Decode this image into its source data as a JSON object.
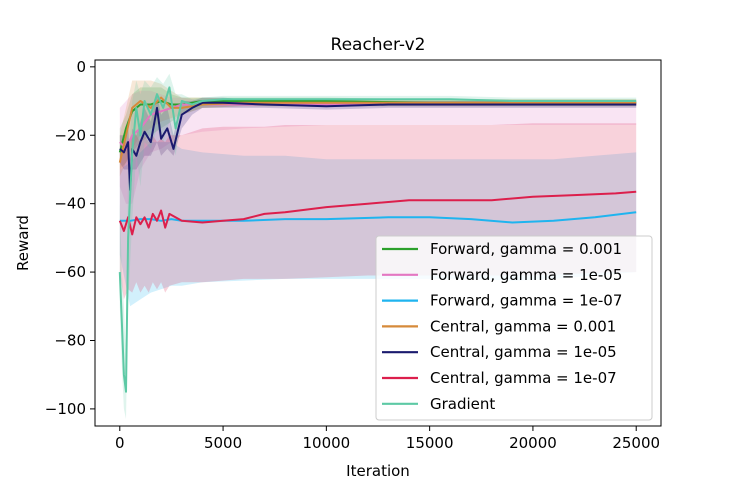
{
  "chart_data": {
    "type": "line",
    "title": "Reacher-v2",
    "xlabel": "Iteration",
    "ylabel": "Reward",
    "xlim": [
      -1200,
      26200
    ],
    "ylim": [
      -105,
      2
    ],
    "xticks": [
      0,
      5000,
      10000,
      15000,
      20000,
      25000
    ],
    "xtick_labels": [
      "0",
      "5000",
      "10000",
      "15000",
      "20000",
      "25000"
    ],
    "yticks": [
      0,
      -20,
      -40,
      -60,
      -80,
      -100
    ],
    "ytick_labels": [
      "0",
      "−20",
      "−40",
      "−60",
      "−80",
      "−100"
    ],
    "legend_position": "lower-right",
    "series": [
      {
        "name": "Forward, gamma = 0.001",
        "color": "#2ca02c",
        "x": [
          0,
          300,
          600,
          1000,
          1500,
          2000,
          2500,
          3000,
          4000,
          6000,
          10000,
          15000,
          20000,
          25000
        ],
        "y": [
          -25,
          -18,
          -13,
          -11,
          -11,
          -10,
          -11,
          -11,
          -10,
          -10,
          -10,
          -10.5,
          -10.5,
          -10.5
        ],
        "band_lower": [
          -30,
          -28,
          -25,
          -22,
          -20,
          -18,
          -16,
          -14,
          -12,
          -11.5,
          -11.5,
          -11.5,
          -11.5,
          -11.5
        ],
        "band_upper": [
          -18,
          -14,
          -8,
          -6,
          -6,
          -6,
          -8,
          -9,
          -9,
          -9,
          -9,
          -9.5,
          -9.5,
          -9.5
        ]
      },
      {
        "name": "Forward, gamma = 1e-05",
        "color": "#e377c2",
        "x": [
          0,
          300,
          600,
          1000,
          1500,
          2000,
          2500,
          3000,
          4000,
          6000,
          10000,
          15000,
          20000,
          25000
        ],
        "y": [
          -22,
          -24,
          -20,
          -18,
          -14,
          -13,
          -12,
          -11,
          -11,
          -11,
          -11,
          -11,
          -11,
          -11
        ],
        "band_lower": [
          -35,
          -40,
          -40,
          -30,
          -25,
          -24,
          -22,
          -20,
          -19,
          -18,
          -17,
          -17,
          -17,
          -17
        ],
        "band_upper": [
          -12,
          -10,
          -8,
          -7,
          -7,
          -8,
          -9,
          -9,
          -10,
          -10,
          -10,
          -10,
          -10,
          -10
        ]
      },
      {
        "name": "Forward, gamma = 1e-07",
        "color": "#1fb4ef",
        "x": [
          0,
          500,
          1000,
          1500,
          2000,
          2500,
          3000,
          4000,
          6000,
          8000,
          10000,
          13000,
          15000,
          17000,
          19000,
          21000,
          23000,
          25000
        ],
        "y": [
          -45,
          -45,
          -44.5,
          -44.5,
          -45,
          -44.5,
          -45,
          -45,
          -45,
          -44.5,
          -44.5,
          -44,
          -44,
          -44.5,
          -45.5,
          -45,
          -44,
          -42.5
        ],
        "band_lower": [
          -55,
          -70,
          -68,
          -66,
          -65,
          -64,
          -64,
          -63,
          -62.5,
          -62,
          -62,
          -62,
          -62,
          -62,
          -62.5,
          -62,
          -61,
          -60
        ],
        "band_upper": [
          -30,
          -28,
          -25,
          -22,
          -22,
          -22,
          -24,
          -25,
          -26,
          -26,
          -27,
          -27,
          -27,
          -27,
          -27,
          -27,
          -26,
          -25
        ]
      },
      {
        "name": "Central, gamma = 0.001",
        "color": "#d68a3a",
        "x": [
          0,
          300,
          600,
          1000,
          1500,
          2000,
          2500,
          3000,
          4000,
          6000,
          10000,
          15000,
          20000,
          25000
        ],
        "y": [
          -28,
          -20,
          -12,
          -10,
          -12,
          -9,
          -12,
          -12,
          -11,
          -10.5,
          -10.5,
          -10.5,
          -10.5,
          -10.5
        ],
        "band_lower": [
          -32,
          -28,
          -24,
          -20,
          -18,
          -16,
          -15,
          -14,
          -12,
          -11.5,
          -11.5,
          -11.5,
          -11.5,
          -11.5
        ],
        "band_upper": [
          -20,
          -12,
          -4,
          -4,
          -4,
          -5,
          -7,
          -9,
          -9,
          -9.5,
          -9.5,
          -9.5,
          -9.5,
          -9.5
        ]
      },
      {
        "name": "Central, gamma = 1e-05",
        "color": "#1a1a6e",
        "x": [
          0,
          200,
          400,
          500,
          600,
          800,
          1000,
          1200,
          1500,
          1800,
          2000,
          2300,
          2600,
          3000,
          3500,
          4000,
          5000,
          7000,
          10000,
          13000,
          16000,
          19000,
          22000,
          25000
        ],
        "y": [
          -24,
          -25,
          -22,
          -36,
          -24,
          -26,
          -22,
          -19,
          -22,
          -12,
          -21,
          -18,
          -24,
          -14,
          -12,
          -10.5,
          -10.5,
          -11,
          -11.5,
          -11,
          -11,
          -11,
          -11,
          -11
        ],
        "band_lower": [
          -28,
          -30,
          -30,
          -40,
          -30,
          -30,
          -28,
          -26,
          -26,
          -22,
          -26,
          -24,
          -26,
          -18,
          -14,
          -12,
          -12,
          -12,
          -12.5,
          -12,
          -12,
          -12,
          -12,
          -12
        ],
        "band_upper": [
          -20,
          -20,
          -16,
          -30,
          -18,
          -20,
          -16,
          -12,
          -16,
          -8,
          -14,
          -12,
          -20,
          -10,
          -10,
          -9,
          -9,
          -10,
          -10.5,
          -10,
          -10,
          -10,
          -10,
          -10
        ]
      },
      {
        "name": "Central, gamma = 1e-07",
        "color": "#dc1f4c",
        "x": [
          0,
          200,
          400,
          600,
          800,
          1000,
          1200,
          1400,
          1600,
          1800,
          2000,
          2200,
          2400,
          3000,
          4000,
          5000,
          6000,
          7000,
          8000,
          10000,
          12000,
          14000,
          16000,
          18000,
          20000,
          22000,
          24000,
          25000
        ],
        "y": [
          -45,
          -48,
          -44,
          -49,
          -44,
          -46,
          -44,
          -47,
          -43,
          -45,
          -42,
          -47,
          -43,
          -45,
          -45.5,
          -45,
          -44.5,
          -43,
          -42.5,
          -41,
          -40,
          -39,
          -39,
          -39,
          -38,
          -37.5,
          -37,
          -36.5
        ],
        "band_lower": [
          -60,
          -68,
          -65,
          -66,
          -63,
          -66,
          -64,
          -66,
          -63,
          -65,
          -63,
          -66,
          -64,
          -63,
          -63,
          -62.5,
          -62,
          -62,
          -62,
          -61.5,
          -61,
          -61,
          -61,
          -61,
          -61,
          -60.5,
          -60,
          -60
        ],
        "band_upper": [
          -25,
          -22,
          -22,
          -20,
          -20,
          -22,
          -20,
          -22,
          -20,
          -22,
          -21,
          -22,
          -20,
          -20,
          -18,
          -17.5,
          -17.5,
          -17.5,
          -17,
          -17,
          -17,
          -17,
          -17,
          -17,
          -16.5,
          -16.5,
          -16.5,
          -16.5
        ]
      },
      {
        "name": "Gradient",
        "color": "#5dc9a5",
        "x": [
          0,
          100,
          200,
          300,
          400,
          600,
          800,
          1000,
          1200,
          1500,
          1800,
          2100,
          2400,
          2700,
          3000,
          3500,
          4000,
          5000,
          7000,
          10000,
          13000,
          16000,
          19000,
          22000,
          25000
        ],
        "y": [
          -60,
          -75,
          -90,
          -95,
          -50,
          -25,
          -12,
          -20,
          -10,
          -14,
          -8,
          -12,
          -6,
          -18,
          -10,
          -11,
          -10,
          -9.5,
          -9.5,
          -9.5,
          -9.5,
          -9.5,
          -10,
          -10,
          -10
        ],
        "band_lower": [
          -70,
          -88,
          -100,
          -103,
          -70,
          -45,
          -25,
          -35,
          -22,
          -24,
          -18,
          -22,
          -16,
          -26,
          -14,
          -12.5,
          -11.5,
          -11,
          -11,
          -11,
          -11,
          -11,
          -11,
          -11,
          -11
        ],
        "band_upper": [
          -40,
          -60,
          -70,
          -85,
          -30,
          -10,
          -4,
          -8,
          -4,
          -6,
          -3,
          -5,
          -2,
          -8,
          -8,
          -9.5,
          -9,
          -8.5,
          -8.5,
          -8.5,
          -8.5,
          -8.5,
          -9,
          -9,
          -9
        ]
      }
    ]
  }
}
